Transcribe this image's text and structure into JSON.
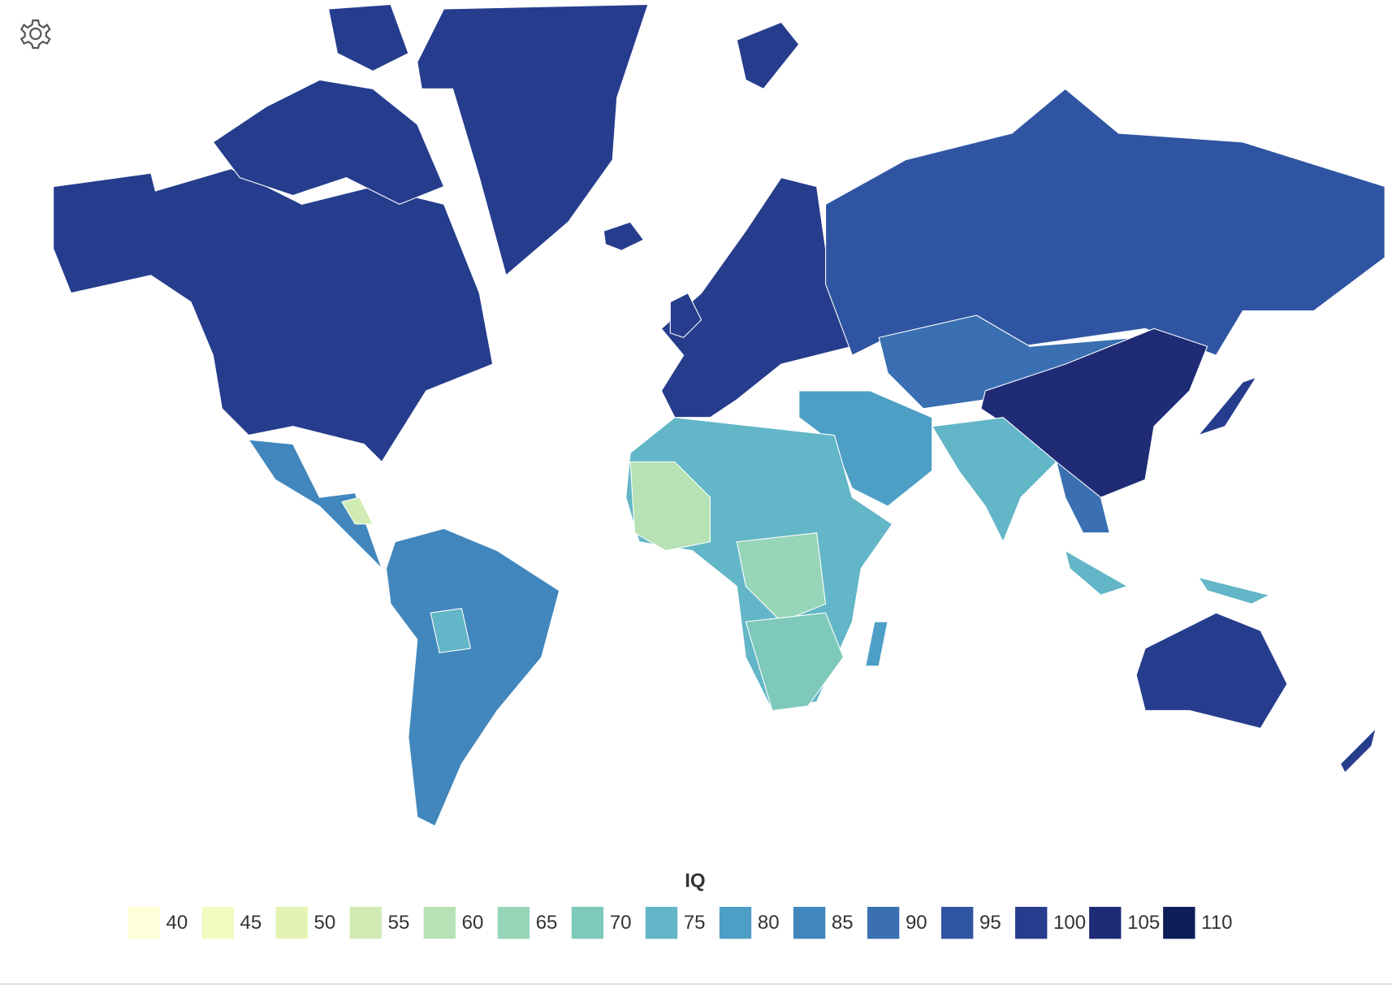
{
  "legend": {
    "title": "IQ",
    "values": [
      40,
      45,
      50,
      55,
      60,
      65,
      70,
      75,
      80,
      85,
      90,
      95,
      100,
      105,
      110
    ],
    "colors": [
      "#ffffd9",
      "#f3fabf",
      "#e3f4b2",
      "#d0ecb4",
      "#b7e2b6",
      "#97d5b9",
      "#7ec9bb",
      "#63b6c7",
      "#4e9fc6",
      "#4187bd",
      "#3a6fb2",
      "#2f55a2",
      "#263d8d",
      "#1f2b75",
      "#0f1d57"
    ]
  }
}
